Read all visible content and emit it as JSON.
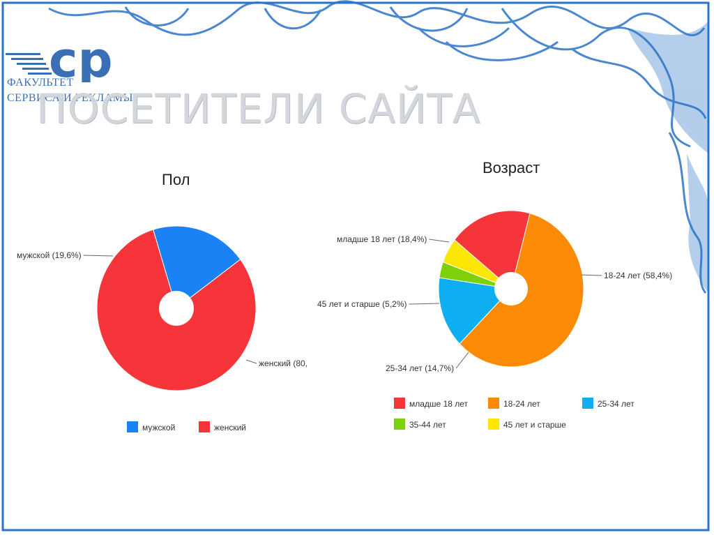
{
  "slide": {
    "title": "ПОСЕТИТЕЛИ САЙТА",
    "logo": {
      "text": "ср",
      "line1": "ФАКУЛЬТЕТ",
      "line2": "СЕРВИСА И РЕКЛАМЫ"
    }
  },
  "colors": {
    "frame": "#2a73c8",
    "red": "#f5353a",
    "blue": "#1b82f5",
    "orange": "#fb8b06",
    "cyan": "#0eaef1",
    "green": "#7ed10a",
    "yellow": "#fbe703"
  },
  "chart_data": [
    {
      "type": "pie",
      "title": "Пол",
      "slices": [
        {
          "name": "мужской",
          "value": 19.6,
          "label": "мужской (19,6%)",
          "color": "#1b82f5"
        },
        {
          "name": "женский",
          "value": 80.4,
          "label": "женский (80,",
          "color": "#f5353a"
        }
      ],
      "legend": [
        "мужской",
        "женский"
      ],
      "legend_position": "bottom"
    },
    {
      "type": "pie",
      "title": "Возраст",
      "slices": [
        {
          "name": "18-24 лет",
          "value": 58.4,
          "label": "18-24 лет (58,4%)",
          "color": "#fb8b06"
        },
        {
          "name": "25-34 лет",
          "value": 14.7,
          "label": "25-34 лет (14,7%)",
          "color": "#0eaef1"
        },
        {
          "name": "35-44 лет",
          "value": 3.3,
          "label": "",
          "color": "#7ed10a"
        },
        {
          "name": "45 лет и старше",
          "value": 5.2,
          "label": "45 лет и старше (5,2%)",
          "color": "#fbe703"
        },
        {
          "name": "младше 18 лет",
          "value": 18.4,
          "label": "младше 18 лет (18,4%)",
          "color": "#f5353a"
        }
      ],
      "legend": [
        "младше 18 лет",
        "18-24 лет",
        "25-34 лет",
        "35-44 лет",
        "45 лет и старше"
      ],
      "legend_position": "bottom"
    }
  ]
}
